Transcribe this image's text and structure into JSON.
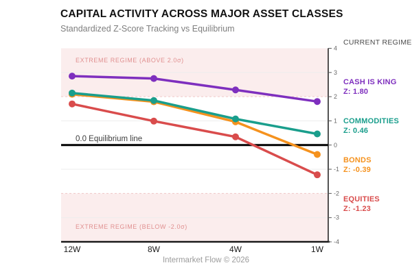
{
  "chart_data": {
    "type": "line",
    "title": "CAPITAL ACTIVITY ACROSS MAJOR ASSET CLASSES",
    "subtitle": "Standardized Z-Score Tracking vs Equilibrium",
    "footer": "Intermarket Flow © 2026",
    "legend_title": "CURRENT REGIME",
    "categories": [
      "12W",
      "8W",
      "4W",
      "1W"
    ],
    "series": [
      {
        "name": "CASH IS KING",
        "z_label": "Z: 1.80",
        "color": "#7E2FBE",
        "values": [
          2.85,
          2.75,
          2.28,
          1.8
        ]
      },
      {
        "name": "COMMODITIES",
        "z_label": "Z: 0.46",
        "color": "#1A9E8C",
        "values": [
          2.15,
          1.84,
          1.08,
          0.46
        ]
      },
      {
        "name": "BONDS",
        "z_label": "Z: -0.39",
        "color": "#F5921E",
        "values": [
          2.1,
          1.79,
          0.96,
          -0.39
        ]
      },
      {
        "name": "EQUITIES",
        "z_label": "Z: -1.23",
        "color": "#D94C4C",
        "values": [
          1.7,
          0.99,
          0.34,
          -1.23
        ]
      }
    ],
    "draw_order": [
      2,
      1,
      3,
      0
    ],
    "ylim": [
      -4,
      4
    ],
    "yticks": [
      4,
      3,
      2,
      1,
      0,
      -1,
      -2,
      -3,
      -4
    ],
    "xlabel": "",
    "ylabel": "",
    "legend_position": "right",
    "grid": "horizontal",
    "band_threshold": 2,
    "equilibrium_label": "0.0 Equilibrium line",
    "upper_band_label": "EXTREME REGIME (ABOVE 2.0σ)",
    "lower_band_label": "EXTREME REGIME (BELOW -2.0σ)",
    "colors": {
      "band_fill": "#FBEDED",
      "band_border": "#F0C6C6",
      "band_text": "#E09090",
      "grid": "#EDEDED",
      "axis": "#1A1A1A",
      "tick_text": "#6A6A6A",
      "equilibrium": "#000000"
    }
  }
}
